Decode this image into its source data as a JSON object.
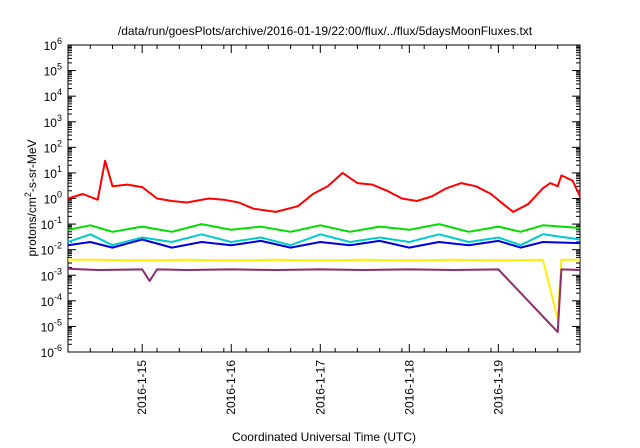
{
  "chart_data": {
    "type": "line",
    "title": "/data/run/goesPlots/archive/2016-01-19/22:00/flux/../flux/5daysMoonFluxes.txt",
    "xlabel": "Coordinated Universal Time (UTC)",
    "ylabel_parts": {
      "pre": "protons/cm",
      "sup": "2",
      "post": "-s-sr-MeV"
    },
    "xlim": [
      "2016-01-14 04:00",
      "2016-01-19 22:00"
    ],
    "ylim_exponent": [
      -6,
      6
    ],
    "y_scale": "log",
    "y_tick_base": "10",
    "y_tick_exponents": [
      "-6",
      "-5",
      "-4",
      "-3",
      "-2",
      "-1",
      "0",
      "1",
      "2",
      "3",
      "4",
      "5",
      "6"
    ],
    "x_tick_dates": [
      "2016-1-15",
      "2016-1-16",
      "2016-1-17",
      "2016-1-18",
      "2016-1-19"
    ],
    "grid": false,
    "legend": "none",
    "series": [
      {
        "color": "#ff0000",
        "points": [
          [
            "2016-01-14 04:00",
            1.0
          ],
          [
            "2016-01-14 08:00",
            1.5
          ],
          [
            "2016-01-14 12:00",
            0.9
          ],
          [
            "2016-01-14 14:00",
            30
          ],
          [
            "2016-01-14 16:00",
            3.0
          ],
          [
            "2016-01-14 20:00",
            3.5
          ],
          [
            "2016-01-15 00:00",
            2.8
          ],
          [
            "2016-01-15 04:00",
            1.0
          ],
          [
            "2016-01-15 08:00",
            0.8
          ],
          [
            "2016-01-15 12:00",
            0.7
          ],
          [
            "2016-01-15 18:00",
            1.0
          ],
          [
            "2016-01-15 22:00",
            0.9
          ],
          [
            "2016-01-16 02:00",
            0.7
          ],
          [
            "2016-01-16 06:00",
            0.4
          ],
          [
            "2016-01-16 12:00",
            0.3
          ],
          [
            "2016-01-16 18:00",
            0.5
          ],
          [
            "2016-01-16 22:00",
            1.5
          ],
          [
            "2016-01-17 02:00",
            3.0
          ],
          [
            "2016-01-17 06:00",
            10
          ],
          [
            "2016-01-17 10:00",
            4.0
          ],
          [
            "2016-01-17 14:00",
            3.5
          ],
          [
            "2016-01-17 18:00",
            2.0
          ],
          [
            "2016-01-17 22:00",
            1.0
          ],
          [
            "2016-01-18 02:00",
            0.8
          ],
          [
            "2016-01-18 06:00",
            1.2
          ],
          [
            "2016-01-18 10:00",
            2.5
          ],
          [
            "2016-01-18 14:00",
            4.0
          ],
          [
            "2016-01-18 18:00",
            3.0
          ],
          [
            "2016-01-18 22:00",
            1.5
          ],
          [
            "2016-01-19 02:00",
            0.5
          ],
          [
            "2016-01-19 04:00",
            0.3
          ],
          [
            "2016-01-19 08:00",
            0.6
          ],
          [
            "2016-01-19 12:00",
            2.5
          ],
          [
            "2016-01-19 14:00",
            4.0
          ],
          [
            "2016-01-19 16:00",
            3.0
          ],
          [
            "2016-01-19 17:00",
            8.0
          ],
          [
            "2016-01-19 20:00",
            5.0
          ],
          [
            "2016-01-19 22:00",
            1.2
          ]
        ]
      },
      {
        "color": "#00dd00",
        "points": [
          [
            "2016-01-14 04:00",
            0.06
          ],
          [
            "2016-01-14 10:00",
            0.09
          ],
          [
            "2016-01-14 16:00",
            0.05
          ],
          [
            "2016-01-15 00:00",
            0.08
          ],
          [
            "2016-01-15 08:00",
            0.05
          ],
          [
            "2016-01-15 16:00",
            0.1
          ],
          [
            "2016-01-16 00:00",
            0.06
          ],
          [
            "2016-01-16 08:00",
            0.08
          ],
          [
            "2016-01-16 16:00",
            0.05
          ],
          [
            "2016-01-17 00:00",
            0.09
          ],
          [
            "2016-01-17 08:00",
            0.05
          ],
          [
            "2016-01-17 16:00",
            0.08
          ],
          [
            "2016-01-18 00:00",
            0.06
          ],
          [
            "2016-01-18 08:00",
            0.1
          ],
          [
            "2016-01-18 16:00",
            0.05
          ],
          [
            "2016-01-19 00:00",
            0.08
          ],
          [
            "2016-01-19 06:00",
            0.05
          ],
          [
            "2016-01-19 12:00",
            0.09
          ],
          [
            "2016-01-19 22:00",
            0.07
          ]
        ]
      },
      {
        "color": "#00cccc",
        "points": [
          [
            "2016-01-14 04:00",
            0.02
          ],
          [
            "2016-01-14 10:00",
            0.04
          ],
          [
            "2016-01-14 16:00",
            0.015
          ],
          [
            "2016-01-15 00:00",
            0.03
          ],
          [
            "2016-01-15 08:00",
            0.02
          ],
          [
            "2016-01-15 16:00",
            0.04
          ],
          [
            "2016-01-16 00:00",
            0.02
          ],
          [
            "2016-01-16 08:00",
            0.03
          ],
          [
            "2016-01-16 16:00",
            0.015
          ],
          [
            "2016-01-17 00:00",
            0.04
          ],
          [
            "2016-01-17 08:00",
            0.02
          ],
          [
            "2016-01-17 16:00",
            0.03
          ],
          [
            "2016-01-18 00:00",
            0.02
          ],
          [
            "2016-01-18 08:00",
            0.04
          ],
          [
            "2016-01-18 16:00",
            0.02
          ],
          [
            "2016-01-19 00:00",
            0.03
          ],
          [
            "2016-01-19 06:00",
            0.015
          ],
          [
            "2016-01-19 12:00",
            0.04
          ],
          [
            "2016-01-19 22:00",
            0.025
          ]
        ]
      },
      {
        "color": "#0000dd",
        "points": [
          [
            "2016-01-14 04:00",
            0.015
          ],
          [
            "2016-01-14 10:00",
            0.02
          ],
          [
            "2016-01-14 16:00",
            0.012
          ],
          [
            "2016-01-15 00:00",
            0.025
          ],
          [
            "2016-01-15 08:00",
            0.012
          ],
          [
            "2016-01-15 16:00",
            0.02
          ],
          [
            "2016-01-16 00:00",
            0.015
          ],
          [
            "2016-01-16 08:00",
            0.022
          ],
          [
            "2016-01-16 16:00",
            0.012
          ],
          [
            "2016-01-17 00:00",
            0.02
          ],
          [
            "2016-01-17 08:00",
            0.015
          ],
          [
            "2016-01-17 16:00",
            0.022
          ],
          [
            "2016-01-18 00:00",
            0.012
          ],
          [
            "2016-01-18 08:00",
            0.02
          ],
          [
            "2016-01-18 16:00",
            0.015
          ],
          [
            "2016-01-19 00:00",
            0.022
          ],
          [
            "2016-01-19 06:00",
            0.012
          ],
          [
            "2016-01-19 12:00",
            0.02
          ],
          [
            "2016-01-19 22:00",
            0.018
          ]
        ]
      },
      {
        "color": "#ffee00",
        "points": [
          [
            "2016-01-14 04:00",
            0.004
          ],
          [
            "2016-01-14 12:00",
            0.004
          ],
          [
            "2016-01-15 00:00",
            0.0038
          ],
          [
            "2016-01-15 12:00",
            0.004
          ],
          [
            "2016-01-16 00:00",
            0.0038
          ],
          [
            "2016-01-16 12:00",
            0.004
          ],
          [
            "2016-01-17 00:00",
            0.0038
          ],
          [
            "2016-01-17 12:00",
            0.004
          ],
          [
            "2016-01-18 00:00",
            0.0038
          ],
          [
            "2016-01-18 12:00",
            0.004
          ],
          [
            "2016-01-19 00:00",
            0.0038
          ],
          [
            "2016-01-19 12:00",
            0.004
          ],
          [
            "2016-01-19 16:00",
            2e-05
          ],
          [
            "2016-01-19 17:00",
            0.004
          ],
          [
            "2016-01-19 22:00",
            0.004
          ]
        ]
      },
      {
        "color": "#8b2c6e",
        "points": [
          [
            "2016-01-14 04:00",
            0.0018
          ],
          [
            "2016-01-14 12:00",
            0.0016
          ],
          [
            "2016-01-15 00:00",
            0.0017
          ],
          [
            "2016-01-15 02:00",
            0.0006
          ],
          [
            "2016-01-15 04:00",
            0.0017
          ],
          [
            "2016-01-15 12:00",
            0.0016
          ],
          [
            "2016-01-16 00:00",
            0.0017
          ],
          [
            "2016-01-16 12:00",
            0.0016
          ],
          [
            "2016-01-17 00:00",
            0.0017
          ],
          [
            "2016-01-17 12:00",
            0.0016
          ],
          [
            "2016-01-18 00:00",
            0.0017
          ],
          [
            "2016-01-18 12:00",
            0.0016
          ],
          [
            "2016-01-19 00:00",
            0.0017
          ],
          [
            "2016-01-19 16:00",
            6e-06
          ],
          [
            "2016-01-19 17:00",
            0.0017
          ],
          [
            "2016-01-19 22:00",
            0.0016
          ]
        ]
      }
    ]
  }
}
